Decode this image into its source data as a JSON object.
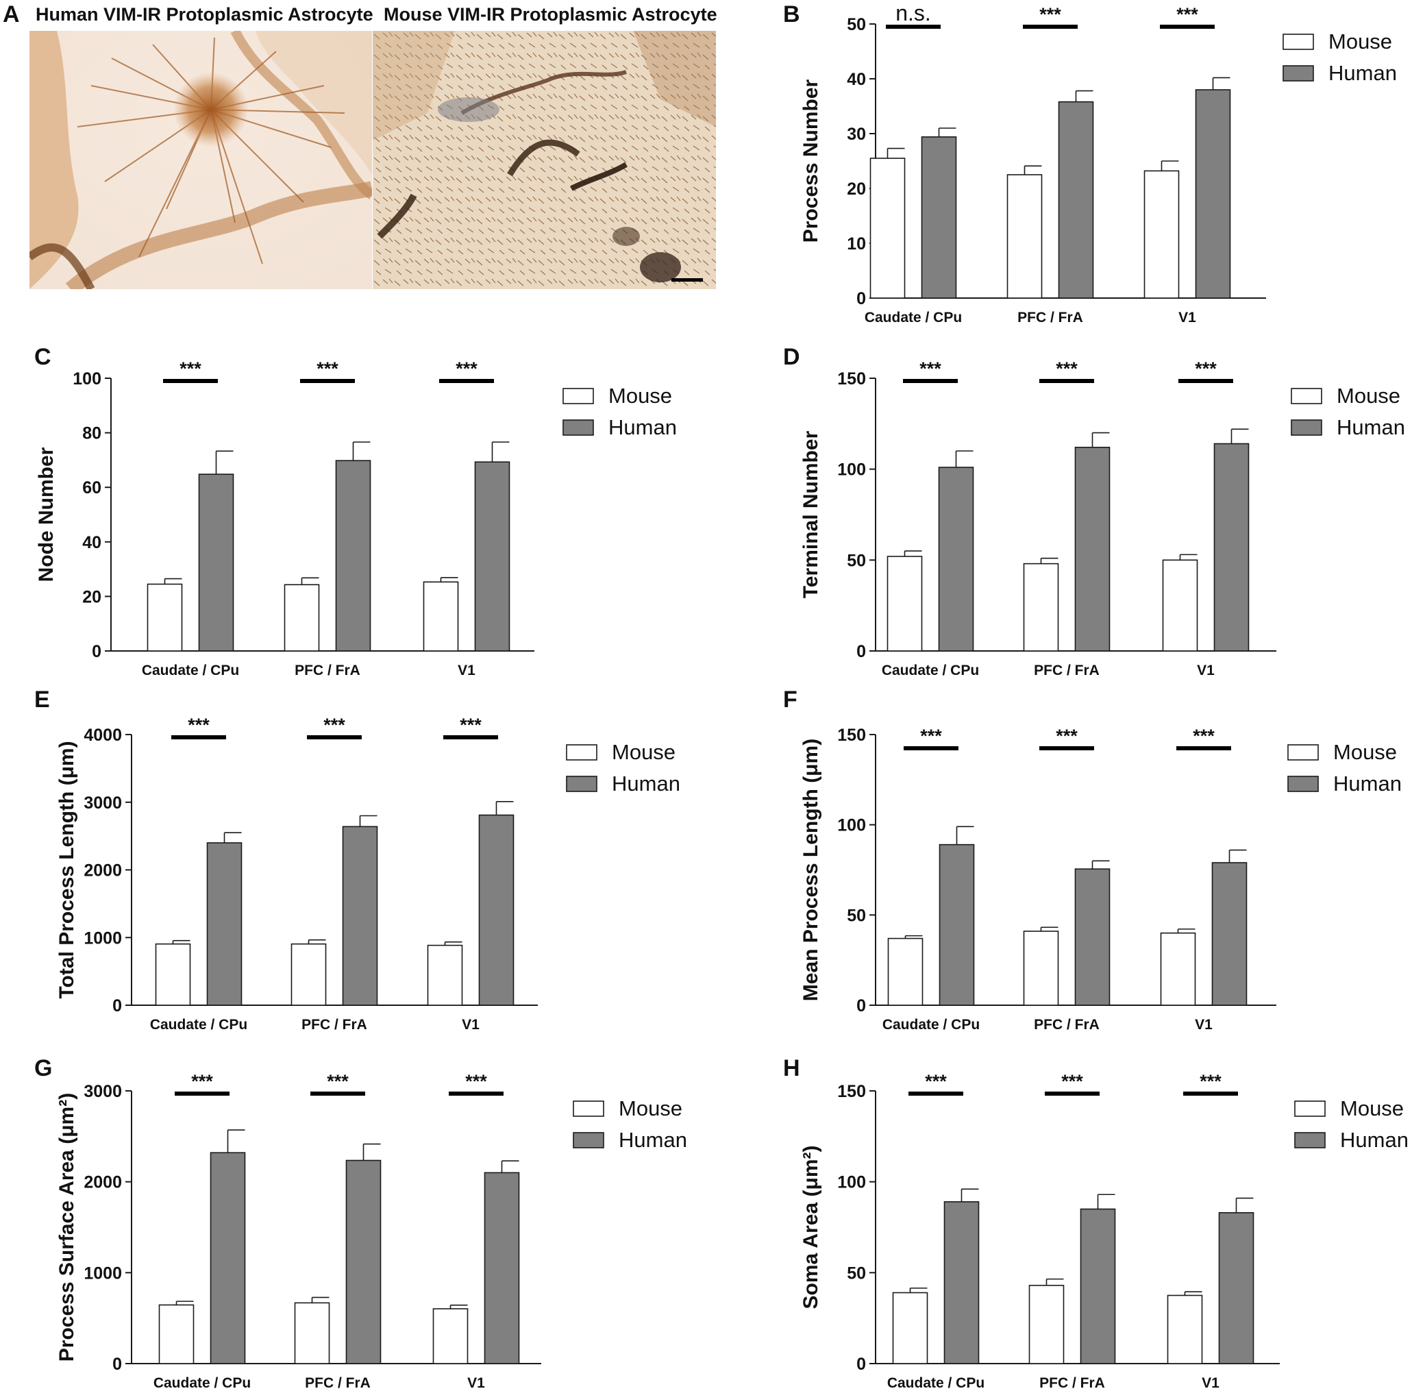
{
  "panel_A": {
    "letter": "A",
    "left_title": "Human VIM-IR Protoplasmic Astrocyte",
    "right_title": "Mouse VIM-IR Protoplasmic Astrocyte"
  },
  "colors": {
    "mouse_fill": "#ffffff",
    "human_fill": "#808080",
    "stroke": "#1a1a1a"
  },
  "chart_data": [
    {
      "panel": "B",
      "type": "bar",
      "categories": [
        "Caudate / CPu",
        "PFC / FrA",
        "V1"
      ],
      "ylabel": "Process Number",
      "ylim": [
        0,
        50
      ],
      "yticks": [
        0,
        10,
        20,
        30,
        40,
        50
      ],
      "series": [
        {
          "name": "Mouse",
          "values": [
            25.5,
            22.5,
            23.2
          ],
          "errors": [
            1.8,
            1.6,
            1.8
          ]
        },
        {
          "name": "Human",
          "values": [
            29.4,
            35.8,
            38.0
          ],
          "errors": [
            1.6,
            2.0,
            2.2
          ]
        }
      ],
      "significance": [
        "n.s.",
        "***",
        "***"
      ],
      "legend": "top-right"
    },
    {
      "panel": "C",
      "type": "bar",
      "categories": [
        "Caudate / CPu",
        "PFC / FrA",
        "V1"
      ],
      "ylabel": "Node Number",
      "ylim": [
        0,
        100
      ],
      "yticks": [
        0,
        20,
        40,
        60,
        80,
        100
      ],
      "series": [
        {
          "name": "Mouse",
          "values": [
            24.5,
            24.3,
            25.3
          ],
          "errors": [
            2.0,
            2.5,
            1.6
          ]
        },
        {
          "name": "Human",
          "values": [
            64.8,
            69.8,
            69.3
          ],
          "errors": [
            8.5,
            6.8,
            7.3
          ]
        }
      ],
      "significance": [
        "***",
        "***",
        "***"
      ],
      "legend": "top-right"
    },
    {
      "panel": "D",
      "type": "bar",
      "categories": [
        "Caudate / CPu",
        "PFC / FrA",
        "V1"
      ],
      "ylabel": "Terminal Number",
      "ylim": [
        0,
        150
      ],
      "yticks": [
        0,
        50,
        100,
        150
      ],
      "series": [
        {
          "name": "Mouse",
          "values": [
            52,
            48,
            50
          ],
          "errors": [
            3,
            3,
            3
          ]
        },
        {
          "name": "Human",
          "values": [
            101,
            112,
            114
          ],
          "errors": [
            9,
            8,
            8
          ]
        }
      ],
      "significance": [
        "***",
        "***",
        "***"
      ],
      "legend": "top-right"
    },
    {
      "panel": "E",
      "type": "bar",
      "categories": [
        "Caudate / CPu",
        "PFC / FrA",
        "V1"
      ],
      "ylabel": "Total Process Length (μm)",
      "ylim": [
        0,
        4000
      ],
      "yticks": [
        0,
        1000,
        2000,
        3000,
        4000
      ],
      "series": [
        {
          "name": "Mouse",
          "values": [
            905,
            905,
            885
          ],
          "errors": [
            50,
            60,
            50
          ]
        },
        {
          "name": "Human",
          "values": [
            2400,
            2640,
            2810
          ],
          "errors": [
            150,
            160,
            200
          ]
        }
      ],
      "significance": [
        "***",
        "***",
        "***"
      ],
      "legend": "top-right"
    },
    {
      "panel": "F",
      "type": "bar",
      "categories": [
        "Caudate / CPu",
        "PFC / FrA",
        "V1"
      ],
      "ylabel": "Mean Process Length (μm)",
      "ylim": [
        0,
        150
      ],
      "yticks": [
        0,
        50,
        100,
        150
      ],
      "series": [
        {
          "name": "Mouse",
          "values": [
            37,
            41,
            40
          ],
          "errors": [
            1.5,
            2.2,
            2.2
          ]
        },
        {
          "name": "Human",
          "values": [
            89,
            75.5,
            79
          ],
          "errors": [
            10,
            4.5,
            7
          ]
        }
      ],
      "significance": [
        "***",
        "***",
        "***"
      ],
      "legend": "top-right"
    },
    {
      "panel": "G",
      "type": "bar",
      "categories": [
        "Caudate / CPu",
        "PFC / FrA",
        "V1"
      ],
      "ylabel": "Process Surface Area (μm²)",
      "ylim": [
        0,
        3000
      ],
      "yticks": [
        0,
        1000,
        2000,
        3000
      ],
      "series": [
        {
          "name": "Mouse",
          "values": [
            645,
            668,
            603
          ],
          "errors": [
            40,
            60,
            40
          ]
        },
        {
          "name": "Human",
          "values": [
            2320,
            2235,
            2100
          ],
          "errors": [
            250,
            180,
            130
          ]
        }
      ],
      "significance": [
        "***",
        "***",
        "***"
      ],
      "legend": "top-right"
    },
    {
      "panel": "H",
      "type": "bar",
      "categories": [
        "Caudate / CPu",
        "PFC / FrA",
        "V1"
      ],
      "ylabel": "Soma Area (μm²)",
      "ylim": [
        0,
        150
      ],
      "yticks": [
        0,
        50,
        100,
        150
      ],
      "series": [
        {
          "name": "Mouse",
          "values": [
            39,
            43,
            37.5
          ],
          "errors": [
            2.5,
            3.5,
            2
          ]
        },
        {
          "name": "Human",
          "values": [
            89,
            85,
            83
          ],
          "errors": [
            7,
            8,
            8
          ]
        }
      ],
      "significance": [
        "***",
        "***",
        "***"
      ],
      "legend": "top-right"
    }
  ]
}
